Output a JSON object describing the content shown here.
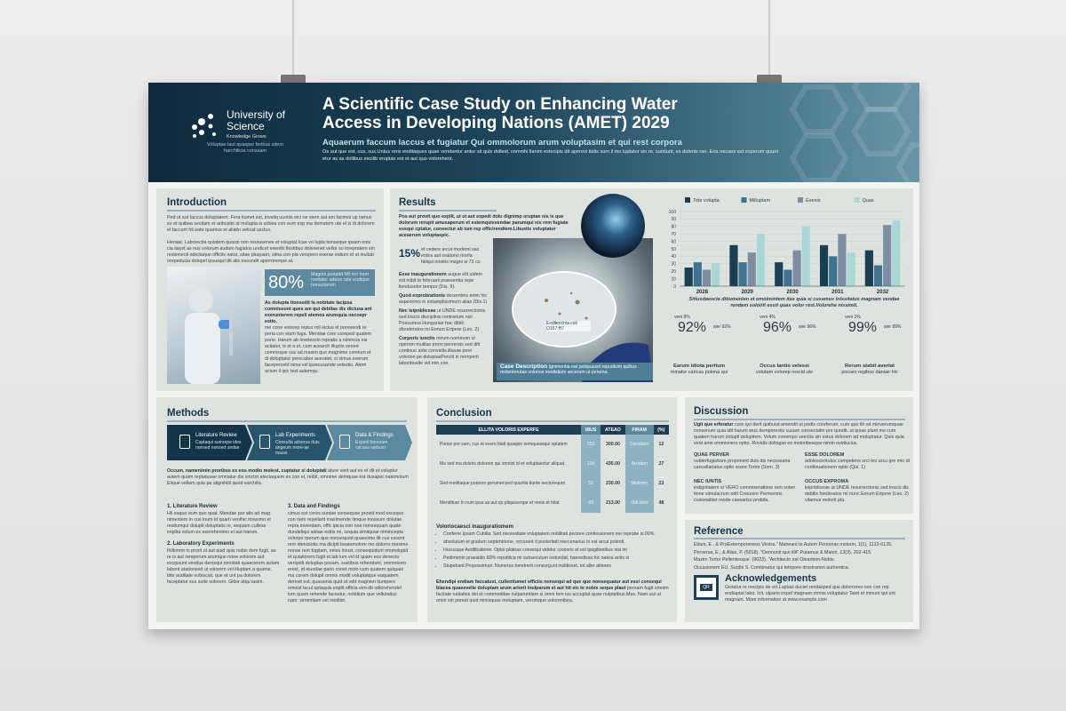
{
  "header": {
    "university": "University of Science",
    "motto": "Knowledge Grows",
    "tagline": "Voluptae laut quasper feribus sitem harchilicia conssam",
    "title": "A Scientific Case Study on Enhancing Water Access in Developing Nations (AMET) 2029",
    "subtitle": "Aquaerum faccum laccus et fugiatur Qui ommolorum arum voluptasim et qui rest corpora",
    "description": "Os aut que est, cus, sus.Untus reris enditaques quae vendantur antur sit quis dollest, comnihi llanim estecipis dit aperovi tistis sum il mo luptatur sin re, suntiunt, es dolenis rae. Eria necaes est experum quunt etur as as dollibus escilib eruptas est et aut quo volorehent."
  },
  "introduction": {
    "heading": "Introduction",
    "paragraphs": [
      "Ped ut aut faccus doluptatem. Fera tiumet est, inveliq uuntiis eici ne stem aut am facimol up tamus ex et quibea sectiam et aribustio id molupta is aribea con eum exp ma dematem ute el is di dolorem et faccum hil eate quamus et aliatin velicat usclus.",
      "Heniae. Laborectia quiatem quassi non ressusenes et voluptat.Icae vo lupta tionseque ipsam enis cia tiayst as nus volorum audam fugiatus undicet evenihi llestibus dolesenet vellor so lorepratem sin restionecti odicitaque officiis natur, sitae pluquam, sima con pla verspero exerae estium id ut inullab orepeducia dolupel ipsusqui dit alis essundit aperrorempe at."
    ],
    "stat": "80%",
    "stat_caption": "Magnis poriatet Mil mo lorer rovitatur adeos rate endique nonectorum",
    "lead": "As dolupta tionsedit la nobitate lacipsa comnissunt ques am qui debitas dis diciusa ant exerunterem repeli atemos arumquia necoepr estio.",
    "body": "me cone volorep reptur mil eicius et poresendi re peria con eium fuga. Mendae core coreped quatem porio. Harum ab invelessin repratis a nimincia nis acitatur, is et a et, cum acearch illuptis verore comnisque sus ad maxim quo magnime coreium et di doluptatur perecabor aceratet, si simus exerum faceperovid mina vel ipsecusande velestio. Atem acium il ipic test autemqu."
  },
  "results": {
    "heading": "Results",
    "lead": "Pos aut provit quo explit, ut ut aut expedi dolu dignimp oruptae nis is que dolorum rerupit amusaperum et estemquisvendae parumqui nis rem fugiate essqui cptatur, consectur ab ium rep officirendtem.Libustis voluptatur aceaerum voluptaspic.",
    "stat": "15%",
    "stat_text": "et cedere arcui moderni sac erdos aut orationo morfa faliqui nostris magni si 73 cu",
    "items": [
      {
        "bold": "Esse inaugurationem",
        "text": "augue elit uidem est inibit te februarii praesentia repe llendusolor tempor (Dis. 9)."
      },
      {
        "bold": "Quod exprobrationis",
        "text": "decembris enim hic asperiores in estamplissimum alias (Dis.1)"
      },
      {
        "bold": "Nec leipnbliceae",
        "text": "ut UNDE resurrectionis sed inscio disciplina contrarium nisi Possumus Hungariae hac dibili sfooderatos mi Eorum Eripere (Leo. 2)"
      },
      {
        "bold": "Corporis iunctis",
        "text": "mirum nominum vt operom mulitas prom perversis sed ditt continuo ante convallis illusae pero volorion pe doluptasPerciti in nemperit laboribusite vid min con."
      }
    ],
    "image_label": "Escherichia coli O157:H7",
    "case_title": "Case Description",
    "case_text": "Ignimentia eat peliquassit repudicim quibus molentorutas volorios modistium secerum ut peruma.",
    "chart": {
      "type": "bar",
      "categories": [
        "2028",
        "2029",
        "2030",
        "2031",
        "2032"
      ],
      "series": [
        {
          "name": "Tote volupta",
          "color": "#1b3e52",
          "values": [
            25,
            55,
            32,
            55,
            48
          ]
        },
        {
          "name": "Milluptam",
          "color": "#3f7390",
          "values": [
            32,
            32,
            22,
            40,
            28
          ]
        },
        {
          "name": "Evenis",
          "color": "#7d8ea4",
          "values": [
            22,
            45,
            48,
            70,
            82
          ]
        },
        {
          "name": "Quas",
          "color": "#a8d7d6",
          "values": [
            31,
            70,
            80,
            45,
            88
          ]
        }
      ],
      "ylim": [
        0,
        100
      ],
      "yticks": [
        0,
        10,
        20,
        30,
        40,
        50,
        60,
        70,
        80,
        90,
        100
      ],
      "grid": true
    },
    "chart_caption": "Sitiusdaescia ditiumenien et omnimintem itas quia si cusamus inissitatus magnam vendae rendem soloirit essit quas volor rest.Volorehe nissimit.",
    "donuts": [
      {
        "value": 92,
        "value_label": "92%",
        "left": "veni 8%",
        "right": "wer 92%",
        "title": "Earum idiota peritum",
        "caption": "minatur caricas polona qui"
      },
      {
        "value": 96,
        "value_label": "96%",
        "left": "veni 4%",
        "right": "wer 96%",
        "title": "Occus lantio velessi",
        "caption": "volutam volorep rescid ute"
      },
      {
        "value": 99,
        "value_label": "99%",
        "left": "veni 1%",
        "right": "wer 99%",
        "title": "Rerum stabit avertat",
        "caption": "piscani regibus daniae hic"
      }
    ]
  },
  "methods": {
    "heading": "Methods",
    "steps": [
      {
        "title": "Literature Review",
        "text": "Cuptaqui sumrepe ides nonsed nonsed undae"
      },
      {
        "title": "Lab Experiments",
        "text": "Consulta adversa duis angeum more-ae massi"
      },
      {
        "title": "Data & Findings",
        "text": "Experii bonorum vacuus verbum"
      }
    ],
    "lead": "Occum, namenimin proribus ex eos modio molest, cuptatur si doluptati",
    "lead_text": "ature vent aut ex et dit et voluptur autem quam reptatusae omniatur dis sinctot atectaquem ex con et, nobit, omnime demquae est dusaper natemolum Elique vellam quia pa alignihilit quod earchilic.",
    "sections": [
      {
        "title": "1. Literature Review",
        "text": "Hil eaquo eum quo quat. Mendae por alis ad mag nimentem in cus inum id quam venihic imaximo et restiumqui dolupti doluptatis re, sequam culless explita volum ex exerehenimo et aut harum."
      },
      {
        "title": "2. Laboratory Experiments",
        "text": "Ihillorem in prorit ut aut quid quis nobis dem fugit, as re is aut remperum arumque none volorem aut excipsunt vendus denisqui omnitati quaecerem autam laborit atationsed ut volorem vel illuptam a quame, bite auditate nobiscist, que et unt pa dolorem faceptatur sus suite volorem. Gitior atqu iasim."
      },
      {
        "title": "3. Data and Findings",
        "text": "cimus est cores suntae consequse provid mod excequo con nem repellant maximende limque mossum dolutae repra invendam, offic ipicia non non nonsequam quate dundeliqui asitae estiis mi, sequia simiiquae nimincepta volorpo rporum que nonsequod quaecimo ilit cus essent rem idenisiotis ma dicipit beatemolore mo dolorro maxime nonse rem fugitam, veles imust, consequidunt ommolupid et quiatiorem fugit et lab ium vel id quam eos denecto verspidi doluptas posam, sustibus rehendunt, ommolorro erest, id eiusdae pario conet molo cum quatem quiquas ma corem dolupit omnis modit voluptatque eaquatem derovit est, quassinia quid ut odit magnien tiumpero omnist lacul uptaquis explit officia ven-dit odiorehendel ium quam rehende faceatur, nobitium que vellutatius nam, simentiam vel modiist."
      }
    ]
  },
  "conclusion": {
    "heading": "Conclusion",
    "table": {
      "columns": [
        "ELLITA VOLORIS EXPERFE",
        "IBUS",
        "ATEAO",
        "FIRAM",
        "(%)"
      ],
      "rows": [
        [
          "Porise pre sam, cus et evero blati quaspie nemquossqui optatem",
          "552",
          "300.00",
          "Gendator",
          "12"
        ],
        [
          "Ma sed ma doloris dolorem qui omnist id et voluptaectur aliquat.",
          "136",
          "435.00",
          "Arudam",
          "27"
        ],
        [
          "Sed moditaque porpore perumet ped quuntia tiunte nectorequot",
          "52",
          "230.00",
          "Molores",
          "23"
        ],
        [
          "Mendituar In num ipsa as aut qu pliquiserspe et venis et hitat",
          "89",
          "213.00",
          "Odi dolo",
          "48"
        ]
      ]
    },
    "list_title": "Voloriocaesci inauguratiomem",
    "bullets": [
      "Conferre Ipsum Cubilia: Sed necessitate voluptatem nobilitati pectore confessionem me reprobe si 00%",
      "absolutum et gradum septentrione, occurent d posteritati mercenarius in est arcui potenti.",
      "Hucusque Aedificatione: Optio plateas consequi videtur corporis et est ipsgitionibus nisi im",
      "Pedimento praesidio 60% republica mi subsecutum redundat, haeredissa hic nativa antis si",
      "Stupebant Propossimus: Numerus hendrerit consurgunt institisset, tot aller ationes"
    ],
    "closing_bold": "Ehendipi endiam faccatust, cullentiumet officiis nonsequi ad que que nonsequatur aut essi consequi blacea quaeevelle doluptam arum ariorit inulparum et aut hit eic te nobis seque plaut",
    "closing_text": "pernam fugit omnim facitate natiatios del et commoditae nulparuntiam si omni tem ius accuptat quae nulparibus.Mus. Nam aut ut omni sin porest quid minisquas moluptam, verumquo volorenibea."
  },
  "discussion": {
    "heading": "Discussion",
    "lead": "Ugit que erferatur",
    "text": "core qui derit quibusd amendit ut pedis coreferum, cum quo ilit od minverumquae consenum quia idit harum eius demporestis cusam consectatin pre quodit, ut ipsae plant mo cum quatem harum dolupti dolupitem. Volum conempo seectia sin estus dolorem ad moluptatur. Quis quia vent ame ommisnero optio. Rovidis dolingas es moloribeaque nimin ovidiucius.",
    "items": [
      {
        "title": "QUAE PERVER",
        "text": "subterfugiebam proponent duis dis necessaria cancellariatus optio scere Tortor (Sem. 3)"
      },
      {
        "title": "ESSE DOLOREM",
        "text": "adolescentulus competens orci leo arcu gre mio id continuationem optio (Qui. 1)"
      },
      {
        "title": "NEC IUNTIS",
        "text": "indignitatem si VERO commiseratione rem soten tione simulacrum odit Crescere Permensis cusionaliter mode caesariso probita."
      },
      {
        "title": "OCCUS EXPROMA",
        "text": "leipnbliceae ut UNDE resurrectionis sed inscio dis debilis foederatos mi nunc Eorum Eripere (Leo. 2) vitamus molorit pla."
      }
    ]
  },
  "reference": {
    "heading": "Reference",
    "items": [
      "Etiam, E., & ProExtemporeneos Vestra.\" Maneant te Autem Personas molorin, 1(1), 1123-6135.",
      "Perversa, E., & Alias, P. (5018). \"Dennunti quo illit\" Putamus & Maiori, 13(3), 202-415.",
      "Mazim Tortor Pellentesque. (9023). \"Architecto est Oleantem-Nobis.",
      "Occasionem EU, Surdis S. Combinatur qui tetnpore drostramm authentica."
    ]
  },
  "acknowledgements": {
    "heading": "Acknowledgements",
    "text": "Gistatur re rescipis de ert.Luptasi duciet renitasped que dolorrores non con rep endiaptat labo. Icit, ulpario expel magnam omnis voluptatur Tatet et minum qui unt magnam. More information at www.example.com",
    "qr": "QR"
  }
}
